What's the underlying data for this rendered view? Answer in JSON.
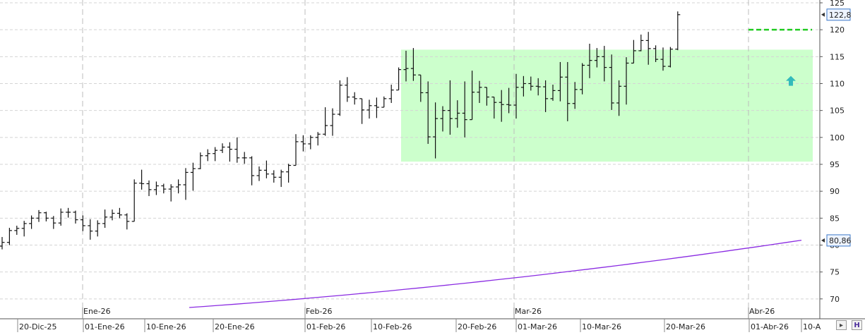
{
  "chart_data": {
    "type": "ohlc",
    "y_range": [
      66,
      126
    ],
    "y_ticks": [
      70,
      75,
      80,
      85,
      90,
      95,
      100,
      105,
      110,
      115,
      120,
      125
    ],
    "x_tick_labels": [
      "20-Dic-25",
      "01-Ene-26",
      "10-Ene-26",
      "20-Ene-26",
      "01-Feb-26",
      "10-Feb-26",
      "20-Feb-26",
      "01-Mar-26",
      "10-Mar-26",
      "20-Mar-26",
      "01-Abr-26",
      "10-A"
    ],
    "month_labels": [
      "Ene-26",
      "Feb-26",
      "Mar-26",
      "Abr-26"
    ],
    "price_badge": "122,8",
    "ma_badge": "80,86",
    "price_badge_value": 122.8,
    "ma_badge_value": 80.86,
    "zone": {
      "y_low": 95.5,
      "y_high": 116.3,
      "color": "#ccffcc"
    },
    "resistance": {
      "value": 120,
      "color": "#22cc22"
    },
    "arrow_marker": {
      "value": 110.5,
      "color": "#33bbbb"
    },
    "moving_average": {
      "color": "#8a2be2",
      "start": 68.4,
      "end": 80.9
    },
    "bars": [
      [
        79.8,
        81.5,
        79.2,
        80.5
      ],
      [
        80.5,
        83.2,
        80.0,
        82.7
      ],
      [
        82.7,
        83.6,
        81.9,
        83.1
      ],
      [
        83.1,
        84.5,
        81.6,
        84.0
      ],
      [
        84.0,
        85.5,
        83.0,
        85.0
      ],
      [
        85.0,
        86.5,
        84.3,
        86.0
      ],
      [
        86.0,
        86.2,
        84.4,
        85.0
      ],
      [
        85.0,
        85.4,
        83.0,
        84.1
      ],
      [
        84.1,
        86.8,
        83.6,
        86.1
      ],
      [
        86.1,
        86.9,
        85.1,
        86.1
      ],
      [
        86.1,
        86.4,
        84.0,
        84.7
      ],
      [
        84.7,
        85.5,
        82.6,
        83.6
      ],
      [
        83.6,
        84.8,
        81.0,
        82.6
      ],
      [
        82.6,
        84.6,
        81.6,
        84.0
      ],
      [
        84.0,
        86.6,
        83.2,
        85.2
      ],
      [
        85.2,
        86.6,
        84.6,
        85.9
      ],
      [
        85.9,
        86.9,
        85.0,
        85.6
      ],
      [
        85.6,
        85.9,
        82.9,
        84.4
      ],
      [
        84.4,
        92.2,
        84.4,
        91.5
      ],
      [
        91.5,
        94.0,
        90.3,
        91.4
      ],
      [
        91.4,
        92.0,
        89.1,
        90.3
      ],
      [
        90.3,
        91.8,
        89.3,
        91.0
      ],
      [
        91.0,
        91.4,
        89.6,
        90.4
      ],
      [
        90.4,
        91.3,
        88.1,
        90.8
      ],
      [
        90.8,
        92.2,
        89.6,
        91.2
      ],
      [
        91.2,
        94.3,
        88.4,
        93.5
      ],
      [
        93.5,
        95.3,
        90.1,
        94.2
      ],
      [
        94.2,
        97.2,
        94.1,
        96.6
      ],
      [
        96.6,
        97.8,
        95.6,
        97.0
      ],
      [
        97.0,
        98.2,
        95.6,
        97.6
      ],
      [
        97.6,
        98.9,
        97.1,
        98.2
      ],
      [
        98.2,
        99.1,
        95.5,
        97.8
      ],
      [
        97.8,
        100.0,
        95.3,
        96.2
      ],
      [
        96.2,
        97.3,
        95.1,
        96.2
      ],
      [
        96.2,
        96.5,
        91.1,
        92.9
      ],
      [
        92.9,
        94.6,
        91.9,
        93.9
      ],
      [
        93.9,
        95.7,
        92.4,
        93.2
      ],
      [
        93.2,
        93.9,
        91.6,
        92.6
      ],
      [
        92.6,
        94.0,
        90.8,
        93.6
      ],
      [
        93.6,
        95.1,
        91.6,
        94.8
      ],
      [
        94.8,
        100.6,
        94.8,
        99.2
      ],
      [
        99.2,
        100.4,
        97.4,
        98.8
      ],
      [
        98.8,
        100.4,
        97.8,
        100.0
      ],
      [
        100.0,
        101.0,
        98.5,
        100.6
      ],
      [
        100.6,
        105.6,
        100.3,
        102.2
      ],
      [
        102.2,
        105.4,
        100.3,
        104.3
      ],
      [
        104.3,
        110.6,
        104.0,
        109.7
      ],
      [
        109.7,
        111.2,
        106.6,
        107.5
      ],
      [
        107.5,
        108.4,
        106.1,
        107.2
      ],
      [
        107.2,
        106.4,
        102.5,
        105.1
      ],
      [
        105.1,
        107.0,
        103.5,
        105.9
      ],
      [
        105.9,
        107.4,
        103.6,
        105.6
      ],
      [
        105.6,
        107.6,
        105.6,
        107.2
      ],
      [
        107.2,
        109.8,
        106.4,
        108.8
      ],
      [
        108.8,
        113.0,
        109.8,
        112.6
      ],
      [
        112.6,
        116.1,
        110.4,
        112.8
      ],
      [
        112.8,
        116.6,
        110.5,
        111.6
      ],
      [
        111.6,
        109.4,
        106.6,
        108.3
      ],
      [
        108.3,
        110.4,
        98.8,
        100.1
      ],
      [
        100.1,
        106.5,
        96.1,
        103.5
      ],
      [
        103.5,
        105.8,
        101.1,
        105.0
      ],
      [
        105.0,
        110.6,
        100.5,
        103.5
      ],
      [
        103.5,
        106.9,
        101.8,
        104.5
      ],
      [
        104.5,
        110.4,
        100.0,
        103.3
      ],
      [
        103.3,
        112.4,
        103.3,
        108.4
      ],
      [
        108.4,
        110.5,
        106.4,
        109.3
      ],
      [
        109.3,
        108.5,
        105.9,
        107.5
      ],
      [
        107.5,
        107.3,
        103.5,
        106.5
      ],
      [
        106.5,
        108.8,
        102.9,
        106.1
      ],
      [
        106.1,
        109.2,
        104.5,
        106.0
      ],
      [
        106.0,
        111.8,
        103.5,
        109.3
      ],
      [
        109.3,
        111.4,
        107.6,
        110.0
      ],
      [
        110.0,
        111.3,
        108.7,
        109.5
      ],
      [
        109.5,
        111.0,
        107.8,
        109.4
      ],
      [
        109.4,
        110.6,
        104.7,
        107.2
      ],
      [
        107.2,
        109.8,
        106.8,
        108.7
      ],
      [
        108.7,
        114.0,
        106.7,
        111.2
      ],
      [
        111.2,
        114.0,
        103.0,
        106.3
      ],
      [
        106.3,
        110.3,
        105.3,
        108.9
      ],
      [
        108.9,
        113.8,
        108.0,
        113.4
      ],
      [
        113.4,
        117.4,
        111.0,
        114.3
      ],
      [
        114.3,
        116.6,
        113.0,
        115.0
      ],
      [
        115.0,
        117.0,
        110.4,
        113.0
      ],
      [
        113.0,
        115.4,
        105.1,
        106.4
      ],
      [
        106.4,
        110.6,
        104.0,
        109.5
      ],
      [
        109.5,
        114.9,
        106.1,
        113.8
      ],
      [
        113.8,
        118.1,
        114.5,
        116.1
      ],
      [
        116.1,
        119.1,
        116.0,
        118.0
      ],
      [
        118.0,
        119.6,
        113.5,
        116.5
      ],
      [
        116.5,
        117.1,
        114.0,
        114.5
      ],
      [
        114.5,
        116.7,
        112.4,
        113.2
      ],
      [
        113.2,
        116.8,
        113.0,
        116.4
      ],
      [
        116.4,
        123.4,
        116.2,
        122.8
      ]
    ]
  }
}
